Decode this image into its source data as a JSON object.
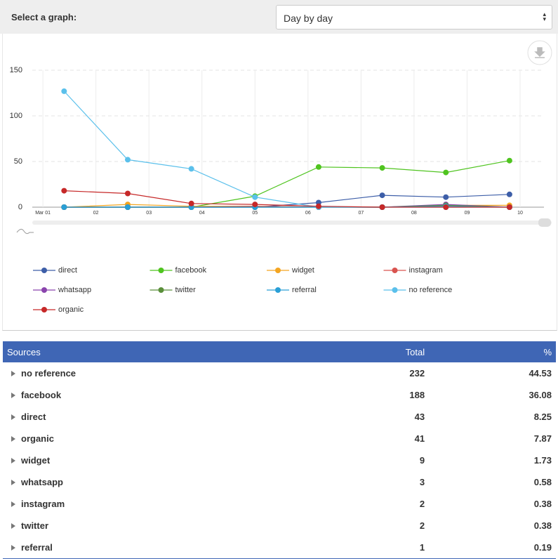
{
  "header": {
    "label": "Select a graph:",
    "selected": "Day by day"
  },
  "chart_data": {
    "type": "line",
    "x": [
      1.4,
      2.6,
      3.8,
      5.0,
      6.2,
      7.4,
      8.6,
      9.8
    ],
    "xlim": [
      0.8,
      10.45
    ],
    "xticks": [
      {
        "value": 1,
        "label": "Mar 01"
      },
      {
        "value": 2,
        "label": "02"
      },
      {
        "value": 3,
        "label": "03"
      },
      {
        "value": 4,
        "label": "04"
      },
      {
        "value": 5,
        "label": "05"
      },
      {
        "value": 6,
        "label": "06"
      },
      {
        "value": 7,
        "label": "07"
      },
      {
        "value": 8,
        "label": "08"
      },
      {
        "value": 9,
        "label": "09"
      },
      {
        "value": 10,
        "label": "10"
      }
    ],
    "ylim": [
      0,
      150
    ],
    "yticks": [
      0,
      50,
      100,
      150
    ],
    "grid": true,
    "series": [
      {
        "name": "direct",
        "color": "#3d5ea8",
        "values": [
          0,
          0,
          0,
          0,
          5,
          13,
          11,
          14
        ]
      },
      {
        "name": "facebook",
        "color": "#4fc41f",
        "values": [
          0,
          0,
          0,
          12,
          44,
          43,
          38,
          51
        ]
      },
      {
        "name": "widget",
        "color": "#f4a521",
        "values": [
          0,
          3,
          1,
          1,
          0,
          0,
          2,
          2
        ]
      },
      {
        "name": "instagram",
        "color": "#d9534f",
        "values": [
          0,
          0,
          0,
          1,
          0,
          0,
          1,
          0
        ]
      },
      {
        "name": "whatsapp",
        "color": "#8a44ad",
        "values": [
          0,
          0,
          0,
          0,
          0,
          0,
          3,
          0
        ]
      },
      {
        "name": "twitter",
        "color": "#5a8f3a",
        "values": [
          0,
          0,
          0,
          0,
          0,
          0,
          2,
          0
        ]
      },
      {
        "name": "referral",
        "color": "#2a9fd6",
        "values": [
          0,
          0,
          0,
          0,
          0,
          0,
          1,
          0
        ]
      },
      {
        "name": "no reference",
        "color": "#5bc0eb",
        "values": [
          127,
          52,
          42,
          11,
          0,
          0,
          0,
          0
        ]
      },
      {
        "name": "organic",
        "color": "#c62828",
        "values": [
          18,
          15,
          4,
          3,
          1,
          0,
          0,
          0
        ]
      }
    ]
  },
  "table": {
    "columns": [
      "Sources",
      "Total",
      "%"
    ],
    "rows": [
      [
        "no reference",
        232,
        44.53
      ],
      [
        "facebook",
        188,
        36.08
      ],
      [
        "direct",
        43,
        8.25
      ],
      [
        "organic",
        41,
        7.87
      ],
      [
        "widget",
        9,
        1.73
      ],
      [
        "whatsapp",
        3,
        0.58
      ],
      [
        "instagram",
        2,
        0.38
      ],
      [
        "twitter",
        2,
        0.38
      ],
      [
        "referral",
        1,
        0.19
      ]
    ]
  }
}
